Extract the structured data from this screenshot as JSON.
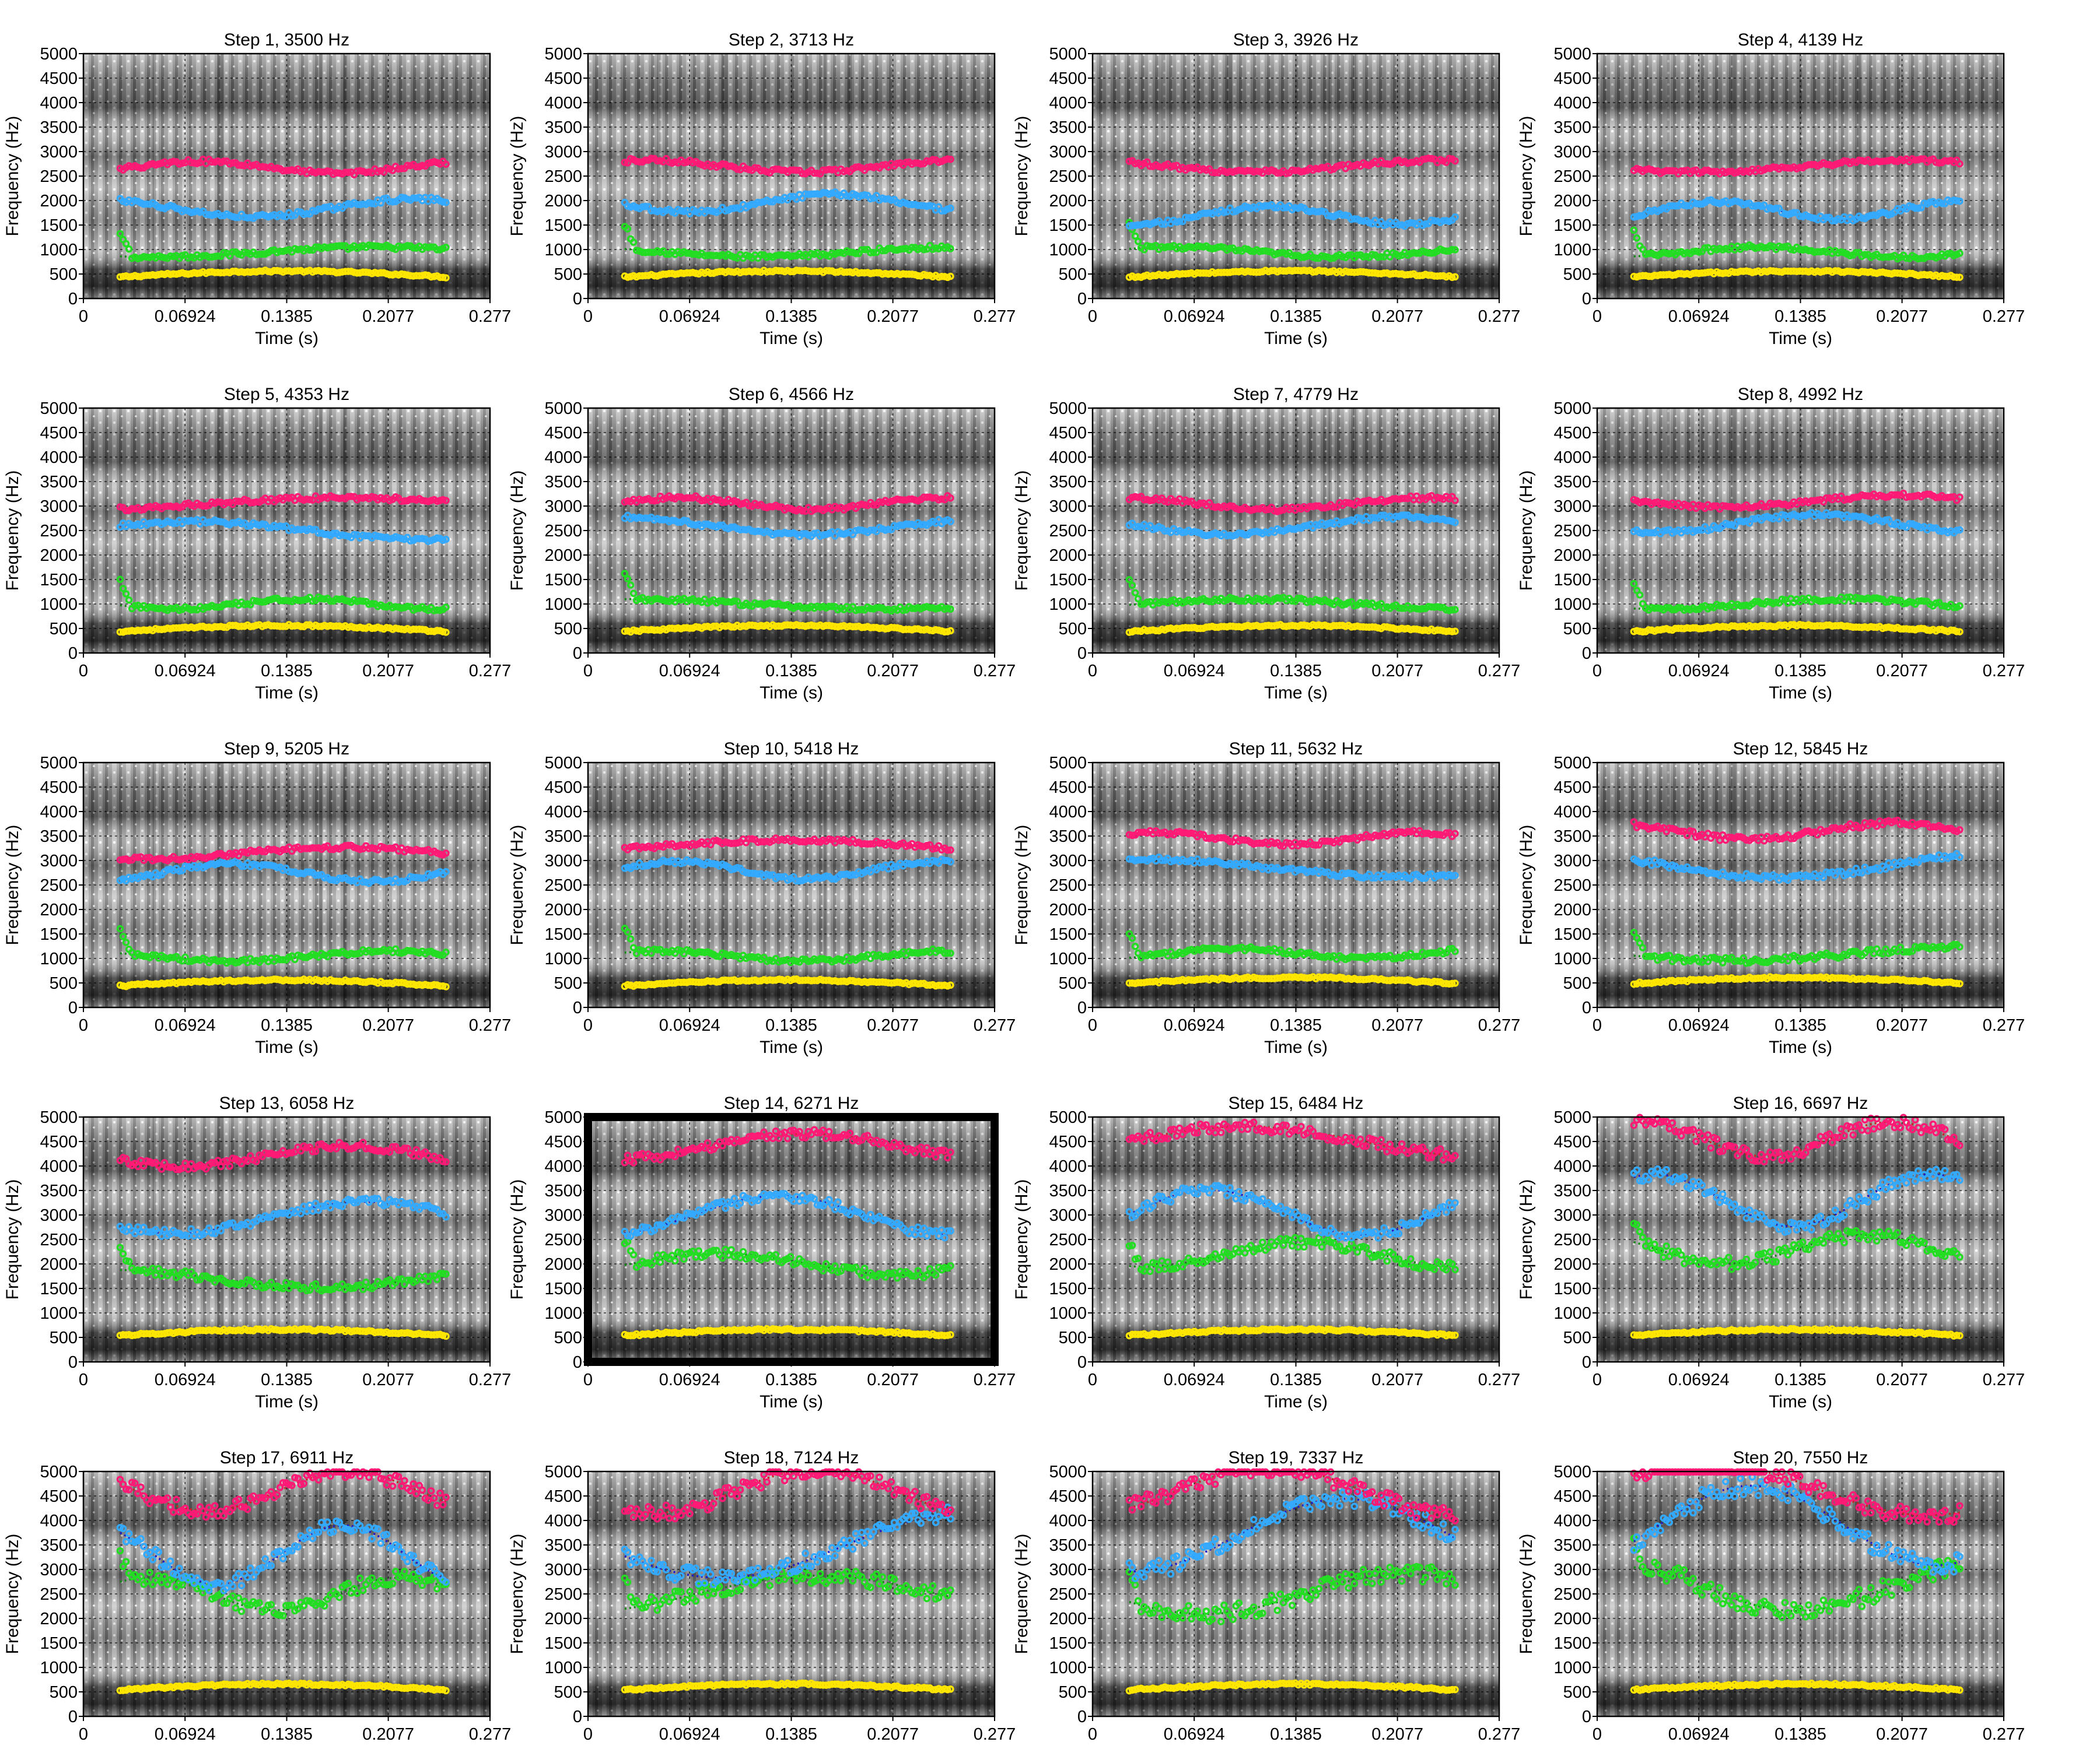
{
  "figure": {
    "colors": {
      "F1": "#ffe600",
      "F2": "#22dd22",
      "F3": "#33aaff",
      "F4": "#ff1a75",
      "F1_fit": "#c8b400",
      "F2_fit": "#118811",
      "F3_fit": "#1a1acc",
      "F4_fit": "#cc2020",
      "background": "#ffffff"
    },
    "selected_panel": 14
  },
  "chart_data": {
    "type": "scatter",
    "description_note": "20 formant-tracking panels over a spectrogram; each panel shows 4 formant tracks (points) with dotted smoothed fits",
    "xlabel": "Time (s)",
    "ylabel": "Frequency (Hz)",
    "xlim": [
      0,
      0.277
    ],
    "ylim": [
      0,
      5000
    ],
    "xticks": [
      "0",
      "0.06924",
      "0.1385",
      "0.2077",
      "0.277"
    ],
    "yticks": [
      "0",
      "500",
      "1000",
      "1500",
      "2000",
      "2500",
      "3000",
      "3500",
      "4000",
      "4500",
      "5000"
    ],
    "grid": true,
    "track_time_range": [
      0.025,
      0.247
    ],
    "panels": [
      {
        "title": "Step 1, 3500 Hz",
        "cutoff_hz": 3500,
        "F1": 500,
        "F2": 950,
        "F3": 1850,
        "F4": 2680
      },
      {
        "title": "Step 2, 3713 Hz",
        "cutoff_hz": 3713,
        "F1": 500,
        "F2": 950,
        "F3": 1950,
        "F4": 2700
      },
      {
        "title": "Step 3, 3926 Hz",
        "cutoff_hz": 3926,
        "F1": 500,
        "F2": 950,
        "F3": 1700,
        "F4": 2700
      },
      {
        "title": "Step 4, 4139 Hz",
        "cutoff_hz": 4139,
        "F1": 500,
        "F2": 950,
        "F3": 1800,
        "F4": 2700
      },
      {
        "title": "Step 5, 4353 Hz",
        "cutoff_hz": 4353,
        "F1": 500,
        "F2": 1000,
        "F3": 2500,
        "F4": 3050
      },
      {
        "title": "Step 6, 4566 Hz",
        "cutoff_hz": 4566,
        "F1": 500,
        "F2": 1000,
        "F3": 2600,
        "F4": 3050
      },
      {
        "title": "Step 7, 4779 Hz",
        "cutoff_hz": 4779,
        "F1": 500,
        "F2": 1000,
        "F3": 2600,
        "F4": 3050
      },
      {
        "title": "Step 8, 4992 Hz",
        "cutoff_hz": 4992,
        "F1": 500,
        "F2": 1000,
        "F3": 2650,
        "F4": 3100
      },
      {
        "title": "Step 9, 5205 Hz",
        "cutoff_hz": 5205,
        "F1": 500,
        "F2": 1050,
        "F3": 2750,
        "F4": 3150
      },
      {
        "title": "Step 10, 5418 Hz",
        "cutoff_hz": 5418,
        "F1": 500,
        "F2": 1050,
        "F3": 2800,
        "F4": 3300
      },
      {
        "title": "Step 11, 5632 Hz",
        "cutoff_hz": 5632,
        "F1": 550,
        "F2": 1100,
        "F3": 2850,
        "F4": 3450
      },
      {
        "title": "Step 12, 5845 Hz",
        "cutoff_hz": 5845,
        "F1": 550,
        "F2": 1100,
        "F3": 2900,
        "F4": 3600
      },
      {
        "title": "Step 13, 6058 Hz",
        "cutoff_hz": 6058,
        "F1": 600,
        "F2": 1700,
        "F3": 2950,
        "F4": 4200
      },
      {
        "title": "Step 14, 6271 Hz",
        "cutoff_hz": 6271,
        "F1": 600,
        "F2": 2000,
        "F3": 3000,
        "F4": 4400
      },
      {
        "title": "Step 15, 6484 Hz",
        "cutoff_hz": 6484,
        "F1": 600,
        "F2": 2200,
        "F3": 3050,
        "F4": 4500
      },
      {
        "title": "Step 16, 6697 Hz",
        "cutoff_hz": 6697,
        "F1": 600,
        "F2": 2300,
        "F3": 3300,
        "F4": 4550
      },
      {
        "title": "Step 17, 6911 Hz",
        "cutoff_hz": 6911,
        "F1": 600,
        "F2": 2500,
        "F3": 3300,
        "F4": 4600
      },
      {
        "title": "Step 18, 7124 Hz",
        "cutoff_hz": 7124,
        "F1": 600,
        "F2": 2500,
        "F3": 3500,
        "F4": 4600
      },
      {
        "title": "Step 19, 7337 Hz",
        "cutoff_hz": 7337,
        "F1": 600,
        "F2": 2500,
        "F3": 3700,
        "F4": 4600
      },
      {
        "title": "Step 20, 7550 Hz",
        "cutoff_hz": 7550,
        "F1": 600,
        "F2": 2600,
        "F3": 3900,
        "F4": 4650
      }
    ]
  }
}
